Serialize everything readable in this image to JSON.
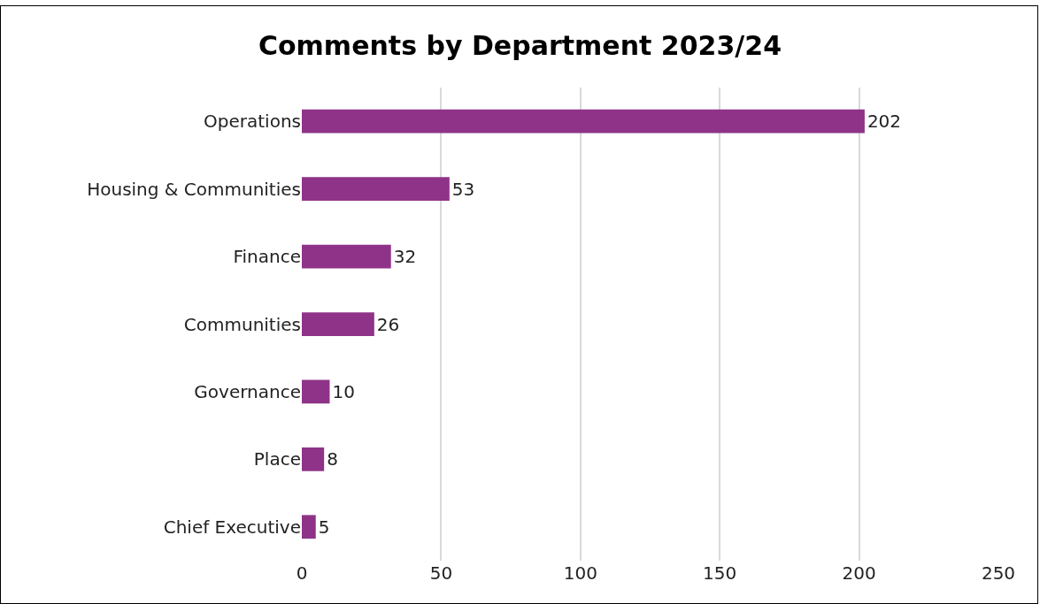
{
  "chart_data": {
    "type": "bar",
    "orientation": "horizontal",
    "title": "Comments by Department 2023/24",
    "categories": [
      "Operations",
      "Housing & Communities",
      "Finance",
      "Communities",
      "Governance",
      "Place",
      "Chief Executive"
    ],
    "values": [
      202,
      53,
      32,
      26,
      10,
      8,
      5
    ],
    "color": "#8e3388",
    "xlim": [
      0,
      250
    ],
    "xticks": [
      0,
      50,
      100,
      150,
      200,
      250
    ],
    "grid": "x",
    "data_labels": true
  }
}
